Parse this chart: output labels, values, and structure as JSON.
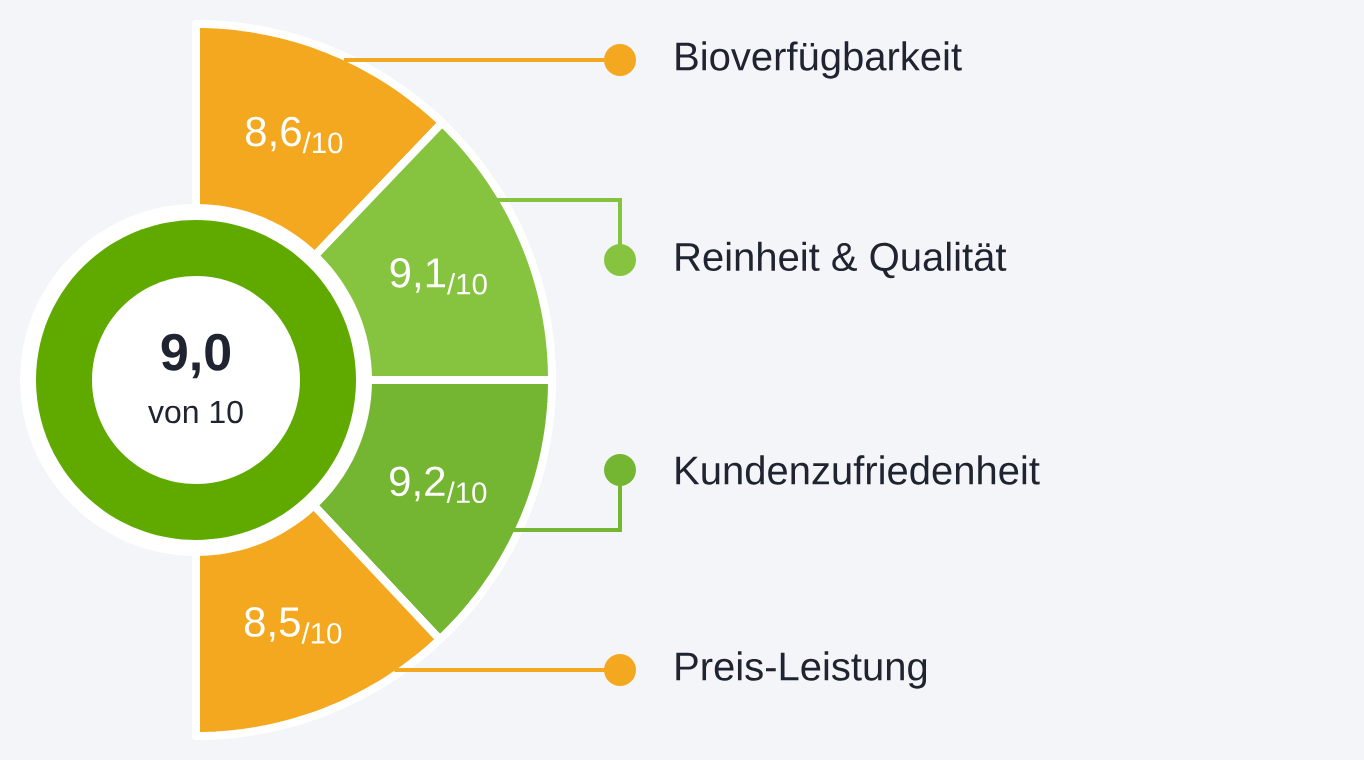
{
  "chart_data": {
    "type": "other",
    "categories": [
      "Bioverfügbarkeit",
      "Reinheit & Qualität",
      "Kundenzufriedenheit",
      "Preis-Leistung"
    ],
    "values": [
      8.6,
      9.1,
      9.2,
      8.5
    ],
    "value_labels": [
      "8,6$_{/10}$",
      "9,1$_{/10}$",
      "9,2$_{/10}$",
      "8,5$_{/10}$"
    ],
    "colors": [
      "#f4a81f",
      "#86c440",
      "#74b631",
      "#f4a81f"
    ],
    "annotations": [
      "9,0",
      "von 10"
    ]
  }
}
